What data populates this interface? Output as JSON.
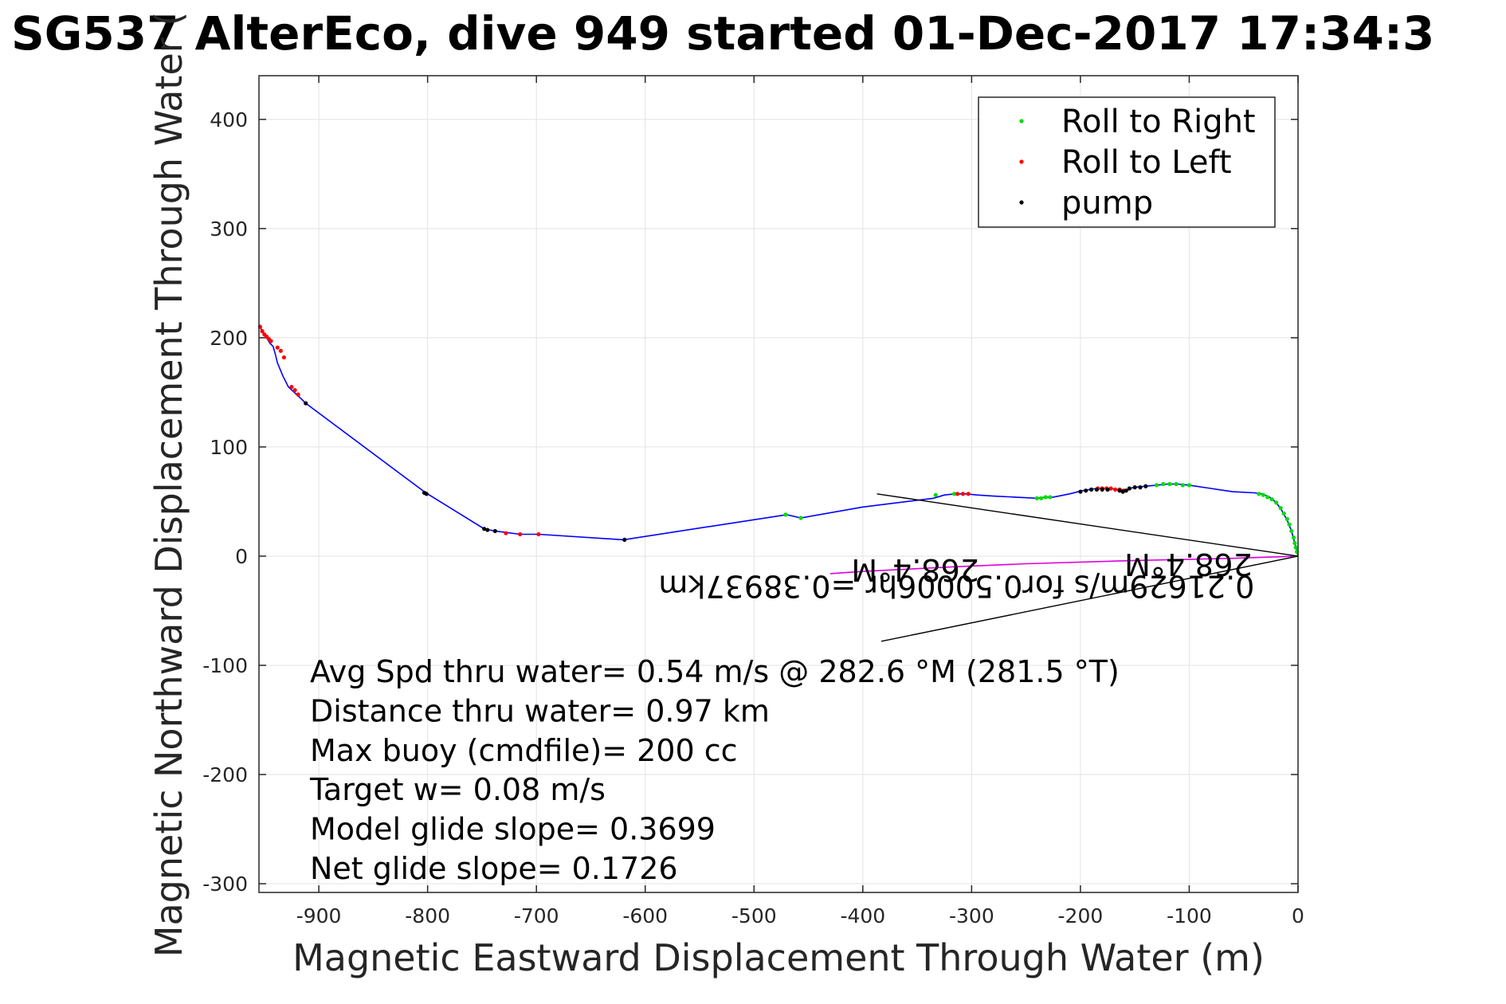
{
  "chart_data": {
    "type": "line",
    "title": "SG537 AlterEco, dive 949 started 01-Dec-2017 17:34:3",
    "xlabel": "Magnetic Eastward Displacement Through Water (m)",
    "ylabel": "Magnetic Northward Displacement Through Water (",
    "xlim": [
      -955,
      0
    ],
    "ylim": [
      -308,
      440
    ],
    "xticks": [
      -900,
      -800,
      -700,
      -600,
      -500,
      -400,
      -300,
      -200,
      -100,
      0
    ],
    "yticks": [
      400,
      300,
      200,
      100,
      0,
      -100,
      -200,
      -300
    ],
    "grid": true,
    "legend_position": "top-right",
    "legend": [
      {
        "label": "Roll to Right",
        "color": "#00dd00"
      },
      {
        "label": "Roll to Left",
        "color": "#ff0000"
      },
      {
        "label": "pump",
        "color": "#000000"
      }
    ],
    "colors": {
      "track": "#0000ff",
      "current": "#dd00dd",
      "annotation_lines": "#000000",
      "roll_right": "#00dd00",
      "roll_left": "#ff0000",
      "pump": "#000000"
    },
    "series": [
      {
        "color": "#0000ff",
        "x": [
          0,
          -3,
          -6,
          -10,
          -15,
          -20,
          -26,
          -33,
          -40,
          -60,
          -80,
          -100,
          -110,
          -120,
          -130,
          -140,
          -150,
          -155,
          -158,
          -162,
          -167,
          -172,
          -178,
          -185,
          -192,
          -198,
          -210,
          -225,
          -232,
          -240,
          -260,
          -280,
          -295,
          -305,
          -315,
          -325,
          -335,
          -400,
          -457,
          -470,
          -620,
          -698,
          -715,
          -738,
          -743,
          -748,
          -800,
          -803,
          -912,
          -915,
          -928,
          -933,
          -938,
          -940,
          -942,
          -945,
          -948,
          -950,
          -952,
          -953,
          -954
        ],
        "y": [
          0,
          12,
          23,
          33,
          42,
          49,
          54,
          57,
          58,
          59,
          62,
          65,
          66,
          66,
          65,
          64,
          63,
          62,
          59,
          61,
          61,
          62,
          62,
          62,
          61,
          60,
          57,
          54,
          54,
          53,
          54,
          55,
          56,
          57,
          57,
          56,
          53,
          45,
          35,
          38,
          15,
          20,
          20,
          23,
          24,
          25,
          57,
          59,
          140,
          143,
          155,
          165,
          177,
          185,
          192,
          195,
          200,
          203,
          205,
          208,
          212
        ]
      },
      {
        "color": "#dd00dd",
        "x": [
          0,
          -60,
          -150,
          -250,
          -320,
          -400,
          -430
        ],
        "y": [
          0,
          -2,
          -4,
          -7,
          -10,
          -14,
          -16
        ]
      }
    ],
    "points": {
      "roll_right": {
        "x": [
          -1,
          -2,
          -3,
          -4,
          -6,
          -8,
          -10,
          -13,
          -16,
          -20,
          -24,
          -28,
          -32,
          -36,
          -100,
          -106,
          -112,
          -118,
          -124,
          -130,
          -228,
          -232,
          -236,
          -240,
          -316,
          -333,
          -457,
          -471
        ],
        "y": [
          4,
          8,
          12,
          17,
          23,
          29,
          34,
          39,
          44,
          49,
          52,
          54,
          56,
          57,
          65,
          65,
          66,
          66,
          66,
          65,
          54,
          54,
          53,
          53,
          57,
          56,
          35,
          38
        ]
      },
      "roll_left": {
        "x": [
          -160,
          -164,
          -168,
          -172,
          -176,
          -180,
          -184,
          -303,
          -308,
          -313,
          -698,
          -715,
          -728,
          -919,
          -922,
          -925,
          -932,
          -935,
          -938,
          -944,
          -946,
          -948,
          -950,
          -952,
          -954
        ],
        "y": [
          60,
          61,
          61,
          62,
          62,
          62,
          62,
          57,
          57,
          57,
          20,
          20,
          21,
          148,
          152,
          155,
          182,
          188,
          191,
          197,
          199,
          201,
          203,
          206,
          210
        ]
      },
      "pump": {
        "x": [
          -140,
          -145,
          -150,
          -155,
          -158,
          -161,
          -164,
          -175,
          -180,
          -185,
          -190,
          -195,
          -200,
          -619,
          -738,
          -745,
          -748,
          -801,
          -803,
          -912
        ],
        "y": [
          64,
          63,
          63,
          62,
          60,
          59,
          60,
          61,
          61,
          61,
          61,
          60,
          59,
          15,
          23,
          24,
          25,
          57,
          58,
          140
        ]
      }
    },
    "annotation_lines": [
      {
        "x": [
          0,
          -387
        ],
        "y": [
          0,
          57
        ]
      },
      {
        "x": [
          0,
          -383
        ],
        "y": [
          0,
          -78
        ]
      }
    ],
    "flipped_annotations": [
      {
        "text": "268.4°M",
        "x": -42,
        "y": 2
      },
      {
        "text": "268.4°M",
        "x": -293,
        "y": -3
      },
      {
        "text": "0.21629m/s for0.50006hr =0.38937km",
        "x": -40,
        "y": -18
      }
    ],
    "stats_lines": [
      "Avg Spd thru water=  0.54 m/s @ 282.6 °M (281.5 °T)",
      "Distance thru water=  0.97 km",
      "Max buoy (cmdfile)= 200 cc",
      "Target w= 0.08 m/s",
      "Model glide slope= 0.3699",
      "Net glide slope= 0.1726"
    ]
  }
}
